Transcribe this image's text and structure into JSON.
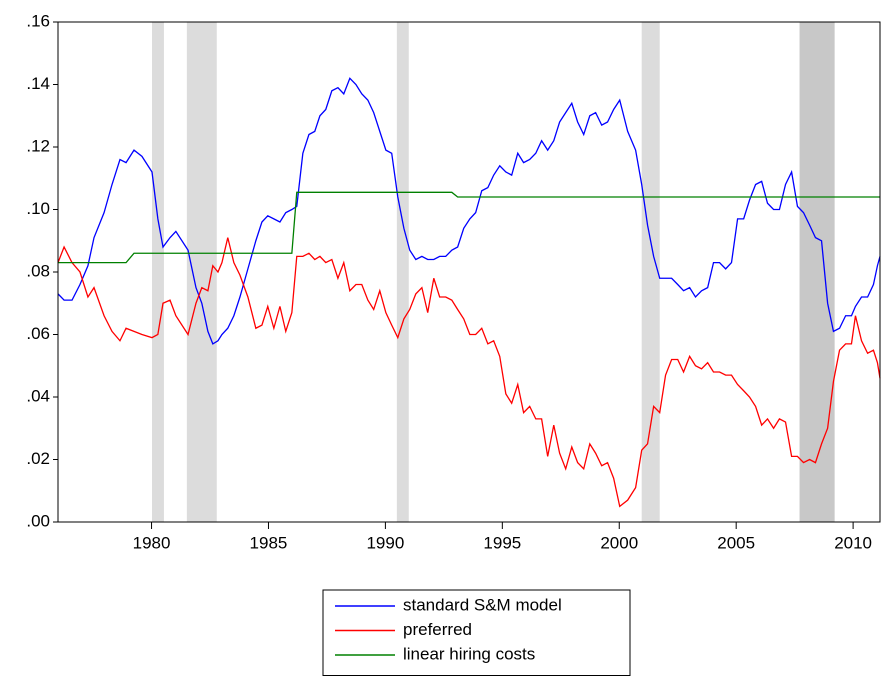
{
  "chart_data": {
    "type": "line",
    "x": [
      1976.0,
      1976.26,
      1976.6,
      1976.94,
      1977.28,
      1977.54,
      1977.97,
      1978.31,
      1978.65,
      1978.91,
      1979.25,
      1979.59,
      1980.02,
      1980.27,
      1980.49,
      1980.79,
      1981.04,
      1981.56,
      1981.9,
      1982.15,
      1982.41,
      1982.62,
      1982.84,
      1983.01,
      1983.26,
      1983.52,
      1983.78,
      1984.12,
      1984.46,
      1984.72,
      1984.97,
      1985.23,
      1985.49,
      1985.74,
      1986.0,
      1986.21,
      1986.47,
      1986.73,
      1986.98,
      1987.2,
      1987.45,
      1987.71,
      1987.97,
      1988.22,
      1988.48,
      1988.74,
      1988.99,
      1989.25,
      1989.5,
      1989.76,
      1990.02,
      1990.27,
      1990.53,
      1990.79,
      1991.04,
      1991.3,
      1991.56,
      1991.81,
      1992.07,
      1992.32,
      1992.58,
      1992.84,
      1993.09,
      1993.35,
      1993.61,
      1993.86,
      1994.12,
      1994.38,
      1994.63,
      1994.89,
      1995.15,
      1995.4,
      1995.66,
      1995.91,
      1996.17,
      1996.43,
      1996.68,
      1996.94,
      1997.2,
      1997.45,
      1997.71,
      1997.97,
      1998.22,
      1998.48,
      1998.74,
      1998.99,
      1999.25,
      1999.5,
      1999.76,
      2000.02,
      2000.36,
      2000.7,
      2000.96,
      2001.21,
      2001.47,
      2001.73,
      2001.98,
      2002.24,
      2002.5,
      2002.75,
      2003.01,
      2003.26,
      2003.52,
      2003.78,
      2004.03,
      2004.29,
      2004.55,
      2004.8,
      2005.06,
      2005.32,
      2005.57,
      2005.83,
      2006.09,
      2006.34,
      2006.6,
      2006.85,
      2007.11,
      2007.37,
      2007.62,
      2007.88,
      2008.14,
      2008.39,
      2008.65,
      2008.91,
      2009.16,
      2009.42,
      2009.68,
      2009.93,
      2010.1,
      2010.36,
      2010.62,
      2010.87,
      2011.04,
      2011.15
    ],
    "series": [
      {
        "name": "standard S&M model",
        "color": "#0000ff",
        "values": [
          0.073,
          0.071,
          0.071,
          0.076,
          0.082,
          0.091,
          0.099,
          0.108,
          0.116,
          0.115,
          0.119,
          0.117,
          0.112,
          0.097,
          0.088,
          0.091,
          0.093,
          0.087,
          0.075,
          0.07,
          0.061,
          0.057,
          0.058,
          0.06,
          0.062,
          0.066,
          0.072,
          0.081,
          0.09,
          0.096,
          0.098,
          0.097,
          0.096,
          0.099,
          0.1,
          0.101,
          0.118,
          0.124,
          0.125,
          0.13,
          0.132,
          0.138,
          0.139,
          0.137,
          0.142,
          0.14,
          0.137,
          0.135,
          0.131,
          0.125,
          0.119,
          0.118,
          0.104,
          0.094,
          0.087,
          0.084,
          0.085,
          0.084,
          0.084,
          0.085,
          0.085,
          0.087,
          0.088,
          0.094,
          0.097,
          0.099,
          0.106,
          0.107,
          0.111,
          0.114,
          0.112,
          0.111,
          0.118,
          0.115,
          0.116,
          0.118,
          0.122,
          0.119,
          0.122,
          0.128,
          0.131,
          0.134,
          0.128,
          0.124,
          0.13,
          0.131,
          0.127,
          0.128,
          0.132,
          0.135,
          0.125,
          0.119,
          0.108,
          0.095,
          0.085,
          0.078,
          0.078,
          0.078,
          0.076,
          0.074,
          0.075,
          0.072,
          0.074,
          0.075,
          0.083,
          0.083,
          0.081,
          0.083,
          0.097,
          0.097,
          0.103,
          0.108,
          0.109,
          0.102,
          0.1,
          0.1,
          0.108,
          0.112,
          0.101,
          0.099,
          0.095,
          0.091,
          0.09,
          0.07,
          0.061,
          0.062,
          0.066,
          0.066,
          0.069,
          0.072,
          0.072,
          0.076,
          0.082,
          0.085
        ]
      },
      {
        "name": "preferred",
        "color": "#ff0000",
        "values": [
          0.083,
          0.088,
          0.083,
          0.08,
          0.072,
          0.075,
          0.066,
          0.061,
          0.058,
          0.062,
          0.061,
          0.06,
          0.059,
          0.06,
          0.07,
          0.071,
          0.066,
          0.06,
          0.07,
          0.075,
          0.074,
          0.082,
          0.08,
          0.083,
          0.091,
          0.083,
          0.079,
          0.072,
          0.062,
          0.063,
          0.069,
          0.062,
          0.069,
          0.061,
          0.067,
          0.085,
          0.085,
          0.086,
          0.084,
          0.085,
          0.083,
          0.084,
          0.078,
          0.083,
          0.074,
          0.076,
          0.076,
          0.071,
          0.068,
          0.074,
          0.067,
          0.063,
          0.059,
          0.065,
          0.068,
          0.073,
          0.075,
          0.067,
          0.078,
          0.072,
          0.072,
          0.071,
          0.068,
          0.065,
          0.06,
          0.06,
          0.062,
          0.057,
          0.058,
          0.053,
          0.041,
          0.038,
          0.044,
          0.035,
          0.037,
          0.033,
          0.033,
          0.021,
          0.031,
          0.022,
          0.017,
          0.024,
          0.019,
          0.017,
          0.025,
          0.022,
          0.018,
          0.019,
          0.014,
          0.005,
          0.007,
          0.011,
          0.023,
          0.025,
          0.037,
          0.035,
          0.047,
          0.052,
          0.052,
          0.048,
          0.053,
          0.05,
          0.049,
          0.051,
          0.048,
          0.048,
          0.047,
          0.047,
          0.044,
          0.042,
          0.04,
          0.037,
          0.031,
          0.033,
          0.03,
          0.033,
          0.032,
          0.021,
          0.021,
          0.019,
          0.02,
          0.019,
          0.025,
          0.03,
          0.045,
          0.055,
          0.057,
          0.057,
          0.066,
          0.058,
          0.054,
          0.055,
          0.051,
          0.046
        ]
      },
      {
        "name": "linear hiring costs",
        "color": "#008000",
        "values": [
          0.083,
          0.083,
          0.083,
          0.083,
          0.083,
          0.083,
          0.083,
          0.083,
          0.083,
          0.083,
          0.086,
          0.086,
          0.086,
          0.086,
          0.086,
          0.086,
          0.086,
          0.086,
          0.086,
          0.086,
          0.086,
          0.086,
          0.086,
          0.086,
          0.086,
          0.086,
          0.086,
          0.086,
          0.086,
          0.086,
          0.086,
          0.086,
          0.086,
          0.086,
          0.086,
          0.1055,
          0.1055,
          0.1055,
          0.1055,
          0.1055,
          0.1055,
          0.1055,
          0.1055,
          0.1055,
          0.1055,
          0.1055,
          0.1055,
          0.1055,
          0.1055,
          0.1055,
          0.1055,
          0.1055,
          0.1055,
          0.1055,
          0.1055,
          0.1055,
          0.1055,
          0.1055,
          0.1055,
          0.1055,
          0.1055,
          0.1055,
          0.104,
          0.104,
          0.104,
          0.104,
          0.104,
          0.104,
          0.104,
          0.104,
          0.104,
          0.104,
          0.104,
          0.104,
          0.104,
          0.104,
          0.104,
          0.104,
          0.104,
          0.104,
          0.104,
          0.104,
          0.104,
          0.104,
          0.104,
          0.104,
          0.104,
          0.104,
          0.104,
          0.104,
          0.104,
          0.104,
          0.104,
          0.104,
          0.104,
          0.104,
          0.104,
          0.104,
          0.104,
          0.104,
          0.104,
          0.104,
          0.104,
          0.104,
          0.104,
          0.104,
          0.104,
          0.104,
          0.104,
          0.104,
          0.104,
          0.104,
          0.104,
          0.104,
          0.104,
          0.104,
          0.104,
          0.104,
          0.104,
          0.104,
          0.104,
          0.104,
          0.104,
          0.104,
          0.104,
          0.104,
          0.104,
          0.104,
          0.104,
          0.104,
          0.104,
          0.104,
          0.104,
          0.104
        ]
      }
    ],
    "shaded_periods": [
      {
        "start": 1980.02,
        "end": 1980.53,
        "color": "#dcdcdc"
      },
      {
        "start": 1981.51,
        "end": 1982.79,
        "color": "#dcdcdc"
      },
      {
        "start": 1990.49,
        "end": 1991.0,
        "color": "#dcdcdc"
      },
      {
        "start": 2000.96,
        "end": 2001.73,
        "color": "#dcdcdc"
      },
      {
        "start": 2007.71,
        "end": 2009.21,
        "color": "#c8c8c8"
      }
    ],
    "xlim": [
      1976,
      2011.15
    ],
    "xticks": [
      1980,
      1985,
      1990,
      1995,
      2000,
      2005,
      2010
    ],
    "ylim": [
      0,
      0.16
    ],
    "yticks": [
      {
        "value": 0,
        "label": ".00"
      },
      {
        "value": 0.02,
        "label": ".02"
      },
      {
        "value": 0.04,
        "label": ".04"
      },
      {
        "value": 0.06,
        "label": ".06"
      },
      {
        "value": 0.08,
        "label": ".08"
      },
      {
        "value": 0.1,
        "label": ".10"
      },
      {
        "value": 0.12,
        "label": ".12"
      },
      {
        "value": 0.14,
        "label": ".14"
      },
      {
        "value": 0.16,
        "label": ".16"
      }
    ],
    "legend": "bottom"
  }
}
